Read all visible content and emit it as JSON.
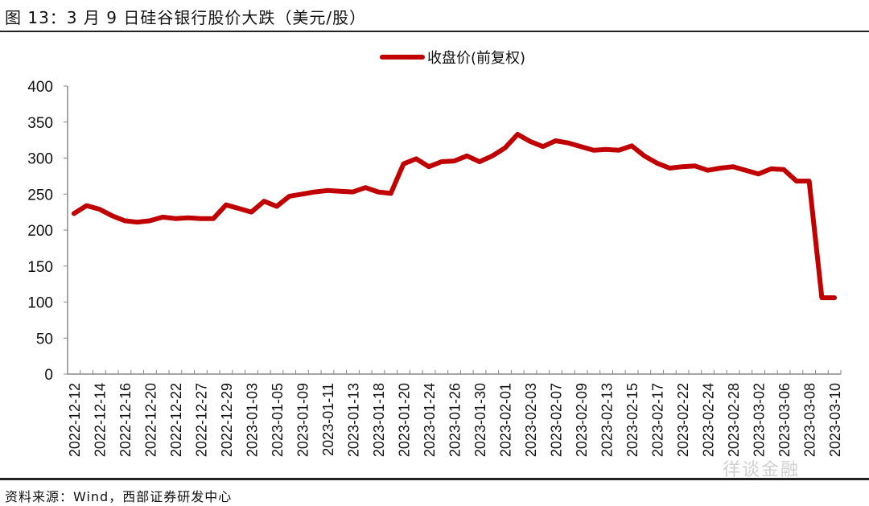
{
  "title": "图 13：3 月 9 日硅谷银行股价大跌（美元/股）",
  "source": "资料来源：Wind，西部证券研发中心",
  "watermark": "徉谈金融",
  "colors": {
    "line": "#C00000",
    "axis": "#888888",
    "text": "#111111"
  },
  "chart_data": {
    "type": "line",
    "title": "图 13：3 月 9 日硅谷银行股价大跌（美元/股）",
    "xlabel": "",
    "ylabel": "",
    "ylim": [
      0,
      400
    ],
    "yticks": [
      0,
      50,
      100,
      150,
      200,
      250,
      300,
      350,
      400
    ],
    "grid": false,
    "legend_position": "top-center",
    "x_tick_labels": [
      "2022-12-12",
      "2022-12-14",
      "2022-12-16",
      "2022-12-20",
      "2022-12-22",
      "2022-12-27",
      "2022-12-29",
      "2023-01-03",
      "2023-01-05",
      "2023-01-09",
      "2023-01-11",
      "2023-01-13",
      "2023-01-18",
      "2023-01-20",
      "2023-01-24",
      "2023-01-26",
      "2023-01-30",
      "2023-02-01",
      "2023-02-03",
      "2023-02-07",
      "2023-02-09",
      "2023-02-13",
      "2023-02-15",
      "2023-02-17",
      "2023-02-22",
      "2023-02-24",
      "2023-02-28",
      "2023-03-02",
      "2023-03-06",
      "2023-03-08",
      "2023-03-10"
    ],
    "series": [
      {
        "name": "收盘价(前复权)",
        "values": [
          223,
          234,
          229,
          220,
          213,
          211,
          213,
          218,
          216,
          217,
          216,
          216,
          235,
          230,
          225,
          240,
          233,
          247,
          250,
          253,
          255,
          254,
          253,
          259,
          253,
          251,
          292,
          299,
          288,
          295,
          296,
          303,
          295,
          303,
          314,
          333,
          323,
          316,
          324,
          321,
          316,
          311,
          312,
          311,
          317,
          303,
          293,
          286,
          288,
          289,
          283,
          286,
          288,
          283,
          278,
          285,
          284,
          268,
          268,
          106,
          106
        ]
      }
    ]
  }
}
